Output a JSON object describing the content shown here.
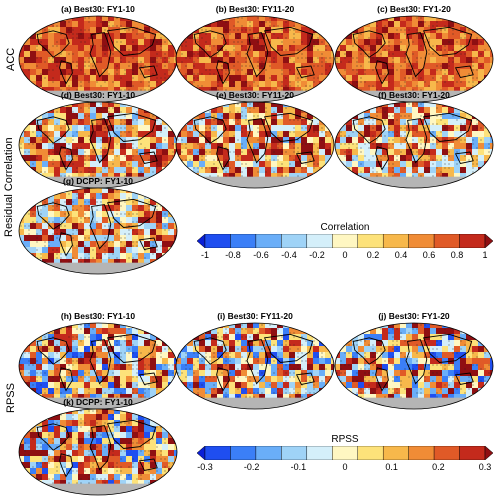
{
  "row_labels": {
    "acc": "ACC",
    "residual": "Residual Correlation",
    "rpss": "RPSS"
  },
  "panels": [
    {
      "id": "a",
      "title": "(a) Best30: FY1-10",
      "group": "acc",
      "fill": "#c0201c"
    },
    {
      "id": "b",
      "title": "(b) Best30: FY11-20",
      "group": "acc",
      "fill": "#c72a1e"
    },
    {
      "id": "c",
      "title": "(c) Best30: FY1-20",
      "group": "acc",
      "fill": "#bd1e1b"
    },
    {
      "id": "d",
      "title": "(d) Best30: FY1-10",
      "group": "residual",
      "fill": "#e97b3c"
    },
    {
      "id": "e",
      "title": "(e) Best30: FY11-20",
      "group": "residual",
      "fill": "#ed8a42"
    },
    {
      "id": "f",
      "title": "(f) Best30: FY1-20",
      "group": "residual",
      "fill": "#e67437"
    },
    {
      "id": "g",
      "title": "(g) DCPP: FY1-10",
      "group": "residual",
      "fill": "#f3b04a"
    },
    {
      "id": "h",
      "title": "(h) Best30: FY1-10",
      "group": "rpss",
      "fill": "#f0a447"
    },
    {
      "id": "i",
      "title": "(i) Best30: FY11-20",
      "group": "rpss",
      "fill": "#f5c55a"
    },
    {
      "id": "j",
      "title": "(j) Best30: FY1-20",
      "group": "rpss",
      "fill": "#e66a33"
    },
    {
      "id": "k",
      "title": "(k) DCPP: FY1-10",
      "group": "rpss",
      "fill": "#f6cd63"
    }
  ],
  "colorbars": {
    "correlation": {
      "title": "Correlation",
      "ticks": [
        "-1",
        "-0.8",
        "-0.6",
        "-0.4",
        "-0.2",
        "0",
        "0.2",
        "0.4",
        "0.6",
        "0.8",
        "1"
      ],
      "colors": [
        "#0a1fd6",
        "#1f4ef0",
        "#3b7ff7",
        "#6aaef8",
        "#9fd3f7",
        "#d4effa",
        "#fff7c2",
        "#fde27a",
        "#f7b84b",
        "#f08c36",
        "#e05a27",
        "#c42a1c",
        "#8f0f12"
      ]
    },
    "rpss": {
      "title": "RPSS",
      "ticks": [
        "-0.3",
        "-0.2",
        "-0.1",
        "0",
        "0.1",
        "0.2",
        "0.3"
      ],
      "colors": [
        "#0a1fd6",
        "#1f4ef0",
        "#3b7ff7",
        "#6aaef8",
        "#9fd3f7",
        "#d4effa",
        "#fff7c2",
        "#fde27a",
        "#f7b84b",
        "#f08c36",
        "#e05a27",
        "#c42a1c",
        "#8f0f12"
      ]
    }
  }
}
